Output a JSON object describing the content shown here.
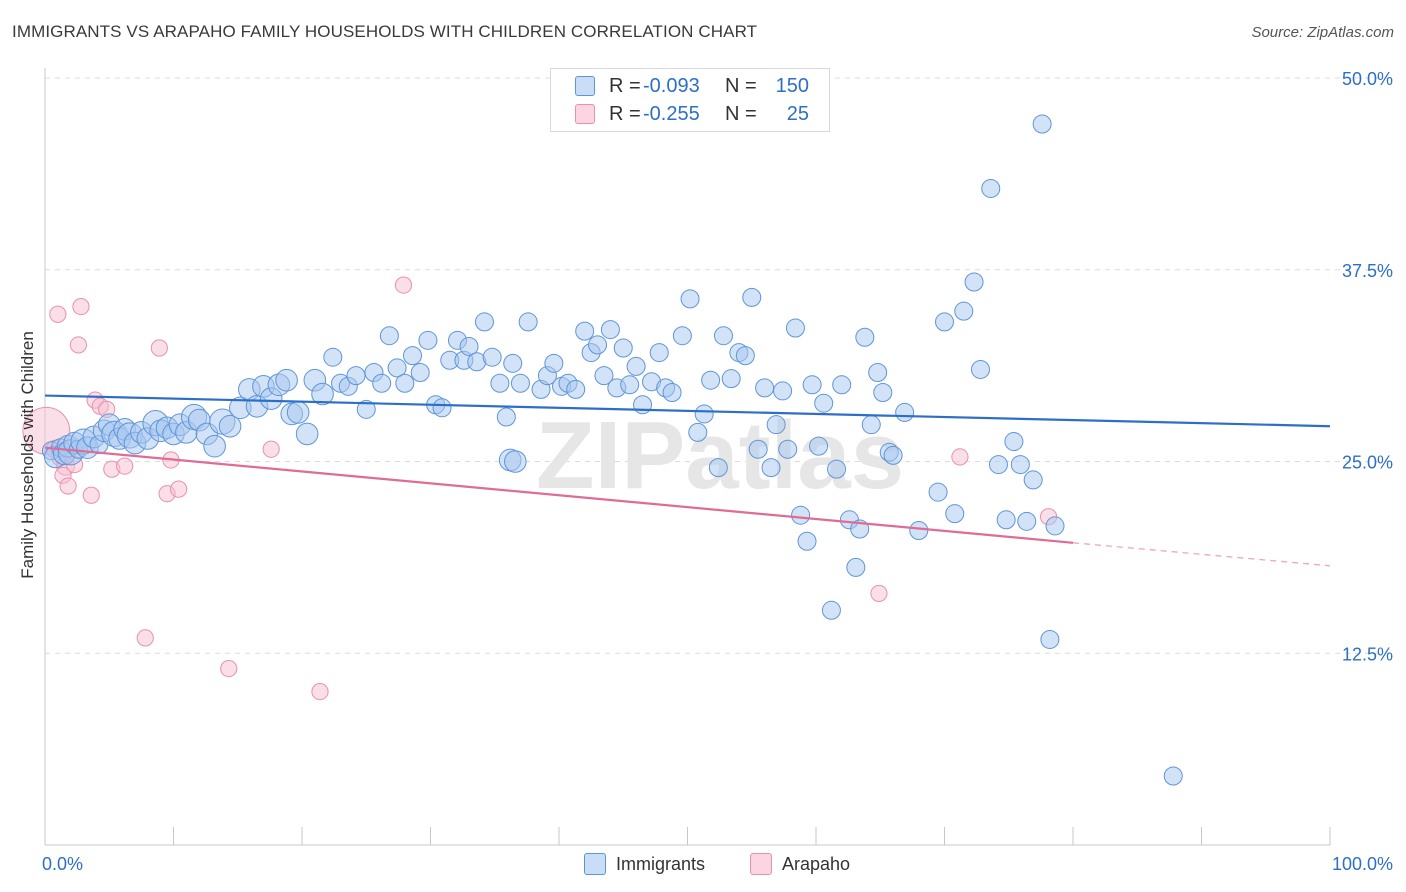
{
  "title": "IMMIGRANTS VS ARAPAHO FAMILY HOUSEHOLDS WITH CHILDREN CORRELATION CHART",
  "source": "Source: ZipAtlas.com",
  "watermark": "ZIPatlas",
  "legend": {
    "rows": [
      {
        "r_label": "R =",
        "r_value": "-0.093",
        "n_label": "N =",
        "n_value": "150",
        "color": "#a8c8f0",
        "stroke": "#5f95d8"
      },
      {
        "r_label": "R =",
        "r_value": "-0.255",
        "n_label": "N =",
        "n_value": "25",
        "color": "#f8c0d2",
        "stroke": "#e890ad"
      }
    ]
  },
  "bottom_legend": [
    {
      "label": "Immigrants",
      "color": "#a8c8f0",
      "stroke": "#5f95d8"
    },
    {
      "label": "Arapaho",
      "color": "#f8c0d2",
      "stroke": "#e890ad"
    }
  ],
  "chart_data": {
    "type": "scatter",
    "title": "IMMIGRANTS VS ARAPAHO FAMILY HOUSEHOLDS WITH CHILDREN CORRELATION CHART",
    "xlabel": "",
    "ylabel": "Family Households with Children",
    "xlim": [
      0,
      100
    ],
    "ylim": [
      0,
      50
    ],
    "x_tick_labels": [
      "0.0%",
      "100.0%"
    ],
    "y_ticks": [
      12.5,
      25.0,
      37.5,
      50.0
    ],
    "y_tick_labels": [
      "12.5%",
      "25.0%",
      "37.5%",
      "50.0%"
    ],
    "grid": true,
    "series": [
      {
        "name": "Immigrants",
        "color": "#a8c8f0",
        "stroke": "#5f95d8",
        "trend": {
          "x": [
            0,
            100
          ],
          "y": [
            29.3,
            27.3
          ],
          "color": "#2d6fc7"
        },
        "points": [
          [
            0.5,
            25.7,
            10
          ],
          [
            0.8,
            25.3,
            12
          ],
          [
            1.2,
            25.9,
            10
          ],
          [
            1.5,
            25.5,
            12
          ],
          [
            1.8,
            26.0,
            12
          ],
          [
            2.0,
            25.6,
            14
          ],
          [
            2.3,
            26.2,
            12
          ],
          [
            2.6,
            25.8,
            10
          ],
          [
            3.0,
            26.3,
            14
          ],
          [
            3.3,
            25.9,
            12
          ],
          [
            3.8,
            26.6,
            12
          ],
          [
            4.2,
            26.1,
            10
          ],
          [
            4.6,
            27.0,
            12
          ],
          [
            5.0,
            27.4,
            12
          ],
          [
            5.4,
            26.8,
            14
          ],
          [
            5.8,
            26.5,
            12
          ],
          [
            6.2,
            27.1,
            12
          ],
          [
            6.6,
            26.7,
            14
          ],
          [
            7.0,
            26.2,
            12
          ],
          [
            7.5,
            26.9,
            12
          ],
          [
            8.0,
            26.5,
            12
          ],
          [
            8.6,
            27.5,
            14
          ],
          [
            9.0,
            27.0,
            12
          ],
          [
            9.5,
            27.2,
            12
          ],
          [
            10.0,
            26.8,
            12
          ],
          [
            10.5,
            27.4,
            12
          ],
          [
            11.0,
            26.9,
            12
          ],
          [
            11.6,
            27.9,
            14
          ],
          [
            12.0,
            27.7,
            12
          ],
          [
            12.6,
            26.8,
            12
          ],
          [
            13.2,
            26.0,
            12
          ],
          [
            13.8,
            27.6,
            14
          ],
          [
            14.4,
            27.3,
            12
          ],
          [
            15.2,
            28.5,
            12
          ],
          [
            15.9,
            29.7,
            12
          ],
          [
            16.5,
            28.6,
            12
          ],
          [
            17.0,
            29.9,
            12
          ],
          [
            17.6,
            29.1,
            12
          ],
          [
            18.2,
            30.0,
            12
          ],
          [
            18.8,
            30.3,
            12
          ],
          [
            19.2,
            28.1,
            12
          ],
          [
            19.7,
            28.2,
            12
          ],
          [
            20.4,
            26.8,
            12
          ],
          [
            21.0,
            30.3,
            12
          ],
          [
            21.6,
            29.4,
            12
          ],
          [
            22.4,
            31.8,
            10
          ],
          [
            23.0,
            30.1,
            10
          ],
          [
            23.6,
            29.9,
            10
          ],
          [
            24.2,
            30.6,
            10
          ],
          [
            25.0,
            28.4,
            10
          ],
          [
            25.6,
            30.8,
            10
          ],
          [
            26.2,
            30.1,
            10
          ],
          [
            26.8,
            33.2,
            10
          ],
          [
            27.4,
            31.1,
            10
          ],
          [
            28.0,
            30.1,
            10
          ],
          [
            28.6,
            31.9,
            10
          ],
          [
            29.2,
            30.8,
            10
          ],
          [
            29.8,
            32.9,
            10
          ],
          [
            30.4,
            28.7,
            10
          ],
          [
            30.9,
            28.5,
            10
          ],
          [
            31.5,
            31.6,
            10
          ],
          [
            32.1,
            32.9,
            10
          ],
          [
            32.6,
            31.6,
            10
          ],
          [
            33.0,
            32.5,
            10
          ],
          [
            33.6,
            31.5,
            10
          ],
          [
            34.2,
            34.1,
            10
          ],
          [
            34.8,
            31.8,
            10
          ],
          [
            35.4,
            30.1,
            10
          ],
          [
            35.9,
            27.9,
            10
          ],
          [
            36.4,
            31.4,
            10
          ],
          [
            37.0,
            30.1,
            10
          ],
          [
            37.6,
            34.1,
            10
          ],
          [
            36.2,
            25.1,
            12
          ],
          [
            36.6,
            25.0,
            12
          ],
          [
            38.6,
            29.7,
            10
          ],
          [
            39.1,
            30.6,
            10
          ],
          [
            39.6,
            31.4,
            10
          ],
          [
            40.2,
            29.9,
            10
          ],
          [
            40.7,
            30.1,
            10
          ],
          [
            41.3,
            29.7,
            10
          ],
          [
            42.0,
            33.5,
            10
          ],
          [
            42.5,
            32.1,
            10
          ],
          [
            43.0,
            32.6,
            10
          ],
          [
            43.5,
            30.6,
            10
          ],
          [
            44.0,
            33.6,
            10
          ],
          [
            44.5,
            29.8,
            10
          ],
          [
            45.0,
            32.4,
            10
          ],
          [
            45.5,
            30.0,
            10
          ],
          [
            46.0,
            31.2,
            10
          ],
          [
            46.5,
            28.7,
            10
          ],
          [
            47.2,
            30.2,
            10
          ],
          [
            47.8,
            32.1,
            10
          ],
          [
            48.3,
            29.8,
            10
          ],
          [
            48.8,
            29.5,
            10
          ],
          [
            49.6,
            33.2,
            10
          ],
          [
            50.2,
            35.6,
            10
          ],
          [
            50.8,
            26.9,
            10
          ],
          [
            51.3,
            28.1,
            10
          ],
          [
            51.8,
            30.3,
            10
          ],
          [
            52.4,
            24.6,
            10
          ],
          [
            52.8,
            33.2,
            10
          ],
          [
            53.4,
            30.4,
            10
          ],
          [
            54.0,
            32.1,
            10
          ],
          [
            54.5,
            31.9,
            10
          ],
          [
            55.0,
            35.7,
            10
          ],
          [
            55.5,
            25.8,
            10
          ],
          [
            56.0,
            29.8,
            10
          ],
          [
            56.5,
            24.6,
            10
          ],
          [
            56.9,
            27.4,
            10
          ],
          [
            57.4,
            29.6,
            10
          ],
          [
            57.8,
            25.8,
            10
          ],
          [
            58.4,
            33.7,
            10
          ],
          [
            58.8,
            21.5,
            10
          ],
          [
            59.3,
            19.8,
            10
          ],
          [
            59.7,
            30.0,
            10
          ],
          [
            60.2,
            26.0,
            10
          ],
          [
            60.6,
            28.8,
            10
          ],
          [
            61.2,
            15.3,
            10
          ],
          [
            61.6,
            24.5,
            10
          ],
          [
            62.0,
            30.0,
            10
          ],
          [
            62.6,
            21.2,
            10
          ],
          [
            63.1,
            18.1,
            10
          ],
          [
            63.4,
            20.6,
            10
          ],
          [
            63.8,
            33.1,
            10
          ],
          [
            64.3,
            27.4,
            10
          ],
          [
            64.8,
            30.8,
            10
          ],
          [
            65.2,
            29.5,
            10
          ],
          [
            65.7,
            25.6,
            10
          ],
          [
            66.0,
            25.4,
            10
          ],
          [
            66.9,
            28.2,
            10
          ],
          [
            68.0,
            20.5,
            10
          ],
          [
            69.5,
            23.0,
            10
          ],
          [
            70.0,
            34.1,
            10
          ],
          [
            70.8,
            21.6,
            10
          ],
          [
            71.5,
            34.8,
            10
          ],
          [
            72.3,
            36.7,
            10
          ],
          [
            72.8,
            31.0,
            10
          ],
          [
            73.6,
            42.8,
            10
          ],
          [
            74.2,
            24.8,
            10
          ],
          [
            74.8,
            21.2,
            10
          ],
          [
            75.4,
            26.3,
            10
          ],
          [
            75.9,
            24.8,
            10
          ],
          [
            76.4,
            21.1,
            10
          ],
          [
            76.9,
            23.8,
            10
          ],
          [
            77.6,
            47.0,
            10
          ],
          [
            78.2,
            13.4,
            10
          ],
          [
            78.6,
            20.8,
            10
          ],
          [
            87.8,
            4.5,
            10
          ]
        ]
      },
      {
        "name": "Arapaho",
        "color": "#f8c0d2",
        "stroke": "#e890ad",
        "trend": {
          "x": [
            0,
            80
          ],
          "y": [
            25.9,
            19.7
          ],
          "color": "#e06b95",
          "dash_to": [
            100,
            18.2
          ]
        },
        "points": [
          [
            0.1,
            27.0,
            26
          ],
          [
            0.8,
            25.8,
            10
          ],
          [
            1.2,
            25.3,
            10
          ],
          [
            1.6,
            24.7,
            10
          ],
          [
            1.0,
            34.6,
            9
          ],
          [
            1.4,
            24.1,
            9
          ],
          [
            1.8,
            23.4,
            9
          ],
          [
            2.3,
            24.8,
            9
          ],
          [
            2.6,
            32.6,
            9
          ],
          [
            2.8,
            35.1,
            9
          ],
          [
            3.6,
            22.8,
            9
          ],
          [
            3.9,
            29.0,
            9
          ],
          [
            4.3,
            28.6,
            9
          ],
          [
            4.8,
            28.4,
            9
          ],
          [
            5.2,
            24.5,
            9
          ],
          [
            6.2,
            24.7,
            9
          ],
          [
            7.8,
            13.5,
            9
          ],
          [
            8.9,
            32.4,
            9
          ],
          [
            9.5,
            22.9,
            9
          ],
          [
            9.8,
            25.1,
            9
          ],
          [
            10.4,
            23.2,
            9
          ],
          [
            14.3,
            11.5,
            9
          ],
          [
            17.6,
            25.8,
            9
          ],
          [
            21.4,
            10.0,
            9
          ],
          [
            27.9,
            36.5,
            9
          ],
          [
            64.9,
            16.4,
            9
          ],
          [
            71.2,
            25.3,
            9
          ],
          [
            78.1,
            21.4,
            9
          ]
        ]
      }
    ]
  }
}
